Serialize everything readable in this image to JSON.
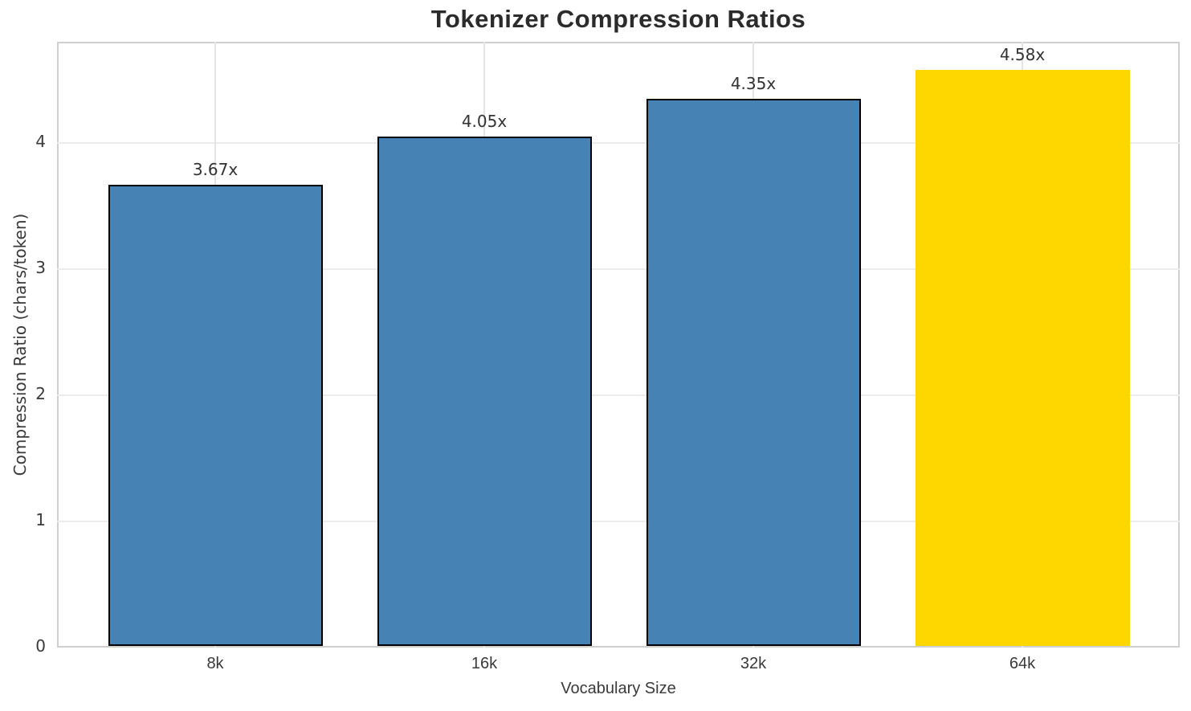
{
  "title": "Tokenizer Compression Ratios",
  "chart_data": {
    "type": "bar",
    "title": "Tokenizer Compression Ratios",
    "xlabel": "Vocabulary Size",
    "ylabel": "Compression Ratio (chars/token)",
    "categories": [
      "8k",
      "16k",
      "32k",
      "64k"
    ],
    "values": [
      3.67,
      4.05,
      4.35,
      4.58
    ],
    "bar_labels": [
      "3.67x",
      "4.05x",
      "4.35x",
      "4.58x"
    ],
    "bar_colors": [
      "#4682B4",
      "#4682B4",
      "#4682B4",
      "#FFD700"
    ],
    "bar_edge_colors": [
      "#000000",
      "#000000",
      "#000000",
      "none"
    ],
    "ylim": [
      0,
      4.8
    ],
    "yticks": [
      0,
      1,
      2,
      3,
      4
    ],
    "grid": true,
    "legend": "none",
    "default_bar_color": "#4682B4",
    "highlight_bar_color": "#FFD700",
    "grid_color": "#ececec",
    "spine_color": "#cfcfcf",
    "text_color": "#3a3a3a",
    "title_color": "#2b2b2b"
  }
}
